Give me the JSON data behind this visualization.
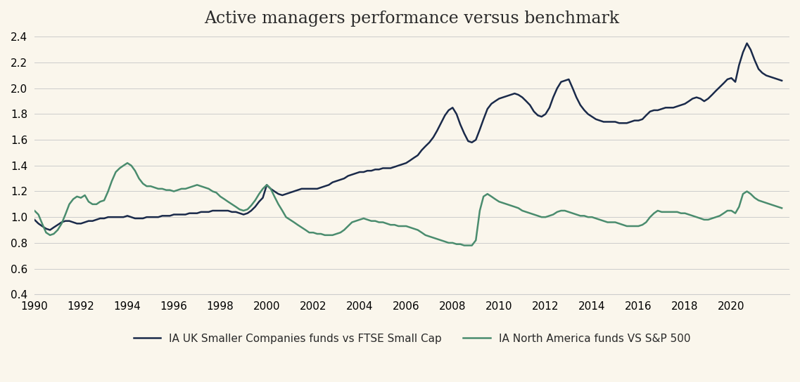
{
  "title": "Active managers performance versus benchmark",
  "background_color": "#faf6ec",
  "plot_background_color": "#faf6ec",
  "line1_color": "#1a2a4a",
  "line2_color": "#4a8c6e",
  "line1_label": "IA UK Smaller Companies funds vs FTSE Small Cap",
  "line2_label": "IA North America funds VS S&P 500",
  "ylim": [
    0.4,
    2.4
  ],
  "yticks": [
    0.4,
    0.6,
    0.8,
    1.0,
    1.2,
    1.4,
    1.6,
    1.8,
    2.0,
    2.2,
    2.4
  ],
  "xlim_start": 1990.0,
  "xlim_end": 2022.5,
  "xticks": [
    1990,
    1992,
    1994,
    1996,
    1998,
    2000,
    2002,
    2004,
    2006,
    2008,
    2010,
    2012,
    2014,
    2016,
    2018,
    2020
  ],
  "grid_color": "#cccccc",
  "title_fontsize": 17,
  "tick_fontsize": 11,
  "legend_fontsize": 11,
  "line_width": 1.8,
  "uk_x": [
    1990.0,
    1990.17,
    1990.33,
    1990.5,
    1990.67,
    1990.83,
    1991.0,
    1991.17,
    1991.33,
    1991.5,
    1991.67,
    1991.83,
    1992.0,
    1992.17,
    1992.33,
    1992.5,
    1992.67,
    1992.83,
    1993.0,
    1993.17,
    1993.33,
    1993.5,
    1993.67,
    1993.83,
    1994.0,
    1994.17,
    1994.33,
    1994.5,
    1994.67,
    1994.83,
    1995.0,
    1995.17,
    1995.33,
    1995.5,
    1995.67,
    1995.83,
    1996.0,
    1996.17,
    1996.33,
    1996.5,
    1996.67,
    1996.83,
    1997.0,
    1997.17,
    1997.33,
    1997.5,
    1997.67,
    1997.83,
    1998.0,
    1998.17,
    1998.33,
    1998.5,
    1998.67,
    1998.83,
    1999.0,
    1999.17,
    1999.33,
    1999.5,
    1999.67,
    1999.83,
    2000.0,
    2000.17,
    2000.33,
    2000.5,
    2000.67,
    2000.83,
    2001.0,
    2001.17,
    2001.33,
    2001.5,
    2001.67,
    2001.83,
    2002.0,
    2002.17,
    2002.33,
    2002.5,
    2002.67,
    2002.83,
    2003.0,
    2003.17,
    2003.33,
    2003.5,
    2003.67,
    2003.83,
    2004.0,
    2004.17,
    2004.33,
    2004.5,
    2004.67,
    2004.83,
    2005.0,
    2005.17,
    2005.33,
    2005.5,
    2005.67,
    2005.83,
    2006.0,
    2006.17,
    2006.33,
    2006.5,
    2006.67,
    2006.83,
    2007.0,
    2007.17,
    2007.33,
    2007.5,
    2007.67,
    2007.83,
    2008.0,
    2008.17,
    2008.33,
    2008.5,
    2008.67,
    2008.83,
    2009.0,
    2009.17,
    2009.33,
    2009.5,
    2009.67,
    2009.83,
    2010.0,
    2010.17,
    2010.33,
    2010.5,
    2010.67,
    2010.83,
    2011.0,
    2011.17,
    2011.33,
    2011.5,
    2011.67,
    2011.83,
    2012.0,
    2012.17,
    2012.33,
    2012.5,
    2012.67,
    2012.83,
    2013.0,
    2013.17,
    2013.33,
    2013.5,
    2013.67,
    2013.83,
    2014.0,
    2014.17,
    2014.33,
    2014.5,
    2014.67,
    2014.83,
    2015.0,
    2015.17,
    2015.33,
    2015.5,
    2015.67,
    2015.83,
    2016.0,
    2016.17,
    2016.33,
    2016.5,
    2016.67,
    2016.83,
    2017.0,
    2017.17,
    2017.33,
    2017.5,
    2017.67,
    2017.83,
    2018.0,
    2018.17,
    2018.33,
    2018.5,
    2018.67,
    2018.83,
    2019.0,
    2019.17,
    2019.33,
    2019.5,
    2019.67,
    2019.83,
    2020.0,
    2020.17,
    2020.33,
    2020.5,
    2020.67,
    2020.83,
    2021.0,
    2021.17,
    2021.33,
    2021.5,
    2021.67,
    2021.83,
    2022.0,
    2022.17
  ],
  "uk_y": [
    0.98,
    0.95,
    0.93,
    0.91,
    0.9,
    0.92,
    0.94,
    0.96,
    0.97,
    0.97,
    0.96,
    0.95,
    0.95,
    0.96,
    0.97,
    0.97,
    0.98,
    0.99,
    0.99,
    1.0,
    1.0,
    1.0,
    1.0,
    1.0,
    1.01,
    1.0,
    0.99,
    0.99,
    0.99,
    1.0,
    1.0,
    1.0,
    1.0,
    1.01,
    1.01,
    1.01,
    1.02,
    1.02,
    1.02,
    1.02,
    1.03,
    1.03,
    1.03,
    1.04,
    1.04,
    1.04,
    1.05,
    1.05,
    1.05,
    1.05,
    1.05,
    1.04,
    1.04,
    1.03,
    1.02,
    1.03,
    1.05,
    1.08,
    1.12,
    1.15,
    1.25,
    1.22,
    1.2,
    1.18,
    1.17,
    1.18,
    1.19,
    1.2,
    1.21,
    1.22,
    1.22,
    1.22,
    1.22,
    1.22,
    1.23,
    1.24,
    1.25,
    1.27,
    1.28,
    1.29,
    1.3,
    1.32,
    1.33,
    1.34,
    1.35,
    1.35,
    1.36,
    1.36,
    1.37,
    1.37,
    1.38,
    1.38,
    1.38,
    1.39,
    1.4,
    1.41,
    1.42,
    1.44,
    1.46,
    1.48,
    1.52,
    1.55,
    1.58,
    1.62,
    1.67,
    1.73,
    1.79,
    1.83,
    1.85,
    1.8,
    1.72,
    1.65,
    1.59,
    1.58,
    1.6,
    1.68,
    1.76,
    1.84,
    1.88,
    1.9,
    1.92,
    1.93,
    1.94,
    1.95,
    1.96,
    1.95,
    1.93,
    1.9,
    1.87,
    1.82,
    1.79,
    1.78,
    1.8,
    1.85,
    1.93,
    2.0,
    2.05,
    2.06,
    2.07,
    2.0,
    1.93,
    1.87,
    1.83,
    1.8,
    1.78,
    1.76,
    1.75,
    1.74,
    1.74,
    1.74,
    1.74,
    1.73,
    1.73,
    1.73,
    1.74,
    1.75,
    1.75,
    1.76,
    1.79,
    1.82,
    1.83,
    1.83,
    1.84,
    1.85,
    1.85,
    1.85,
    1.86,
    1.87,
    1.88,
    1.9,
    1.92,
    1.93,
    1.92,
    1.9,
    1.92,
    1.95,
    1.98,
    2.01,
    2.04,
    2.07,
    2.08,
    2.05,
    2.18,
    2.28,
    2.35,
    2.3,
    2.22,
    2.15,
    2.12,
    2.1,
    2.09,
    2.08,
    2.07,
    2.06
  ],
  "na_x": [
    1990.0,
    1990.17,
    1990.33,
    1990.5,
    1990.67,
    1990.83,
    1991.0,
    1991.17,
    1991.33,
    1991.5,
    1991.67,
    1991.83,
    1992.0,
    1992.17,
    1992.33,
    1992.5,
    1992.67,
    1992.83,
    1993.0,
    1993.17,
    1993.33,
    1993.5,
    1993.67,
    1993.83,
    1994.0,
    1994.17,
    1994.33,
    1994.5,
    1994.67,
    1994.83,
    1995.0,
    1995.17,
    1995.33,
    1995.5,
    1995.67,
    1995.83,
    1996.0,
    1996.17,
    1996.33,
    1996.5,
    1996.67,
    1996.83,
    1997.0,
    1997.17,
    1997.33,
    1997.5,
    1997.67,
    1997.83,
    1998.0,
    1998.17,
    1998.33,
    1998.5,
    1998.67,
    1998.83,
    1999.0,
    1999.17,
    1999.33,
    1999.5,
    1999.67,
    1999.83,
    2000.0,
    2000.17,
    2000.33,
    2000.5,
    2000.67,
    2000.83,
    2001.0,
    2001.17,
    2001.33,
    2001.5,
    2001.67,
    2001.83,
    2002.0,
    2002.17,
    2002.33,
    2002.5,
    2002.67,
    2002.83,
    2003.0,
    2003.17,
    2003.33,
    2003.5,
    2003.67,
    2003.83,
    2004.0,
    2004.17,
    2004.33,
    2004.5,
    2004.67,
    2004.83,
    2005.0,
    2005.17,
    2005.33,
    2005.5,
    2005.67,
    2005.83,
    2006.0,
    2006.17,
    2006.33,
    2006.5,
    2006.67,
    2006.83,
    2007.0,
    2007.17,
    2007.33,
    2007.5,
    2007.67,
    2007.83,
    2008.0,
    2008.17,
    2008.33,
    2008.5,
    2008.67,
    2008.83,
    2009.0,
    2009.17,
    2009.33,
    2009.5,
    2009.67,
    2009.83,
    2010.0,
    2010.17,
    2010.33,
    2010.5,
    2010.67,
    2010.83,
    2011.0,
    2011.17,
    2011.33,
    2011.5,
    2011.67,
    2011.83,
    2012.0,
    2012.17,
    2012.33,
    2012.5,
    2012.67,
    2012.83,
    2013.0,
    2013.17,
    2013.33,
    2013.5,
    2013.67,
    2013.83,
    2014.0,
    2014.17,
    2014.33,
    2014.5,
    2014.67,
    2014.83,
    2015.0,
    2015.17,
    2015.33,
    2015.5,
    2015.67,
    2015.83,
    2016.0,
    2016.17,
    2016.33,
    2016.5,
    2016.67,
    2016.83,
    2017.0,
    2017.17,
    2017.33,
    2017.5,
    2017.67,
    2017.83,
    2018.0,
    2018.17,
    2018.33,
    2018.5,
    2018.67,
    2018.83,
    2019.0,
    2019.17,
    2019.33,
    2019.5,
    2019.67,
    2019.83,
    2020.0,
    2020.17,
    2020.33,
    2020.5,
    2020.67,
    2020.83,
    2021.0,
    2021.17,
    2021.33,
    2021.5,
    2021.67,
    2021.83,
    2022.0,
    2022.17
  ],
  "na_y": [
    1.05,
    1.02,
    0.95,
    0.88,
    0.86,
    0.87,
    0.9,
    0.95,
    1.02,
    1.1,
    1.14,
    1.16,
    1.15,
    1.17,
    1.12,
    1.1,
    1.1,
    1.12,
    1.13,
    1.2,
    1.28,
    1.35,
    1.38,
    1.4,
    1.42,
    1.4,
    1.36,
    1.3,
    1.26,
    1.24,
    1.24,
    1.23,
    1.22,
    1.22,
    1.21,
    1.21,
    1.2,
    1.21,
    1.22,
    1.22,
    1.23,
    1.24,
    1.25,
    1.24,
    1.23,
    1.22,
    1.2,
    1.19,
    1.16,
    1.14,
    1.12,
    1.1,
    1.08,
    1.06,
    1.05,
    1.06,
    1.09,
    1.13,
    1.18,
    1.22,
    1.25,
    1.22,
    1.16,
    1.1,
    1.05,
    1.0,
    0.98,
    0.96,
    0.94,
    0.92,
    0.9,
    0.88,
    0.88,
    0.87,
    0.87,
    0.86,
    0.86,
    0.86,
    0.87,
    0.88,
    0.9,
    0.93,
    0.96,
    0.97,
    0.98,
    0.99,
    0.98,
    0.97,
    0.97,
    0.96,
    0.96,
    0.95,
    0.94,
    0.94,
    0.93,
    0.93,
    0.93,
    0.92,
    0.91,
    0.9,
    0.88,
    0.86,
    0.85,
    0.84,
    0.83,
    0.82,
    0.81,
    0.8,
    0.8,
    0.79,
    0.79,
    0.78,
    0.78,
    0.78,
    0.82,
    1.05,
    1.16,
    1.18,
    1.16,
    1.14,
    1.12,
    1.11,
    1.1,
    1.09,
    1.08,
    1.07,
    1.05,
    1.04,
    1.03,
    1.02,
    1.01,
    1.0,
    1.0,
    1.01,
    1.02,
    1.04,
    1.05,
    1.05,
    1.04,
    1.03,
    1.02,
    1.01,
    1.01,
    1.0,
    1.0,
    0.99,
    0.98,
    0.97,
    0.96,
    0.96,
    0.96,
    0.95,
    0.94,
    0.93,
    0.93,
    0.93,
    0.93,
    0.94,
    0.96,
    1.0,
    1.03,
    1.05,
    1.04,
    1.04,
    1.04,
    1.04,
    1.04,
    1.03,
    1.03,
    1.02,
    1.01,
    1.0,
    0.99,
    0.98,
    0.98,
    0.99,
    1.0,
    1.01,
    1.03,
    1.05,
    1.05,
    1.03,
    1.08,
    1.18,
    1.2,
    1.18,
    1.15,
    1.13,
    1.12,
    1.11,
    1.1,
    1.09,
    1.08,
    1.07
  ]
}
